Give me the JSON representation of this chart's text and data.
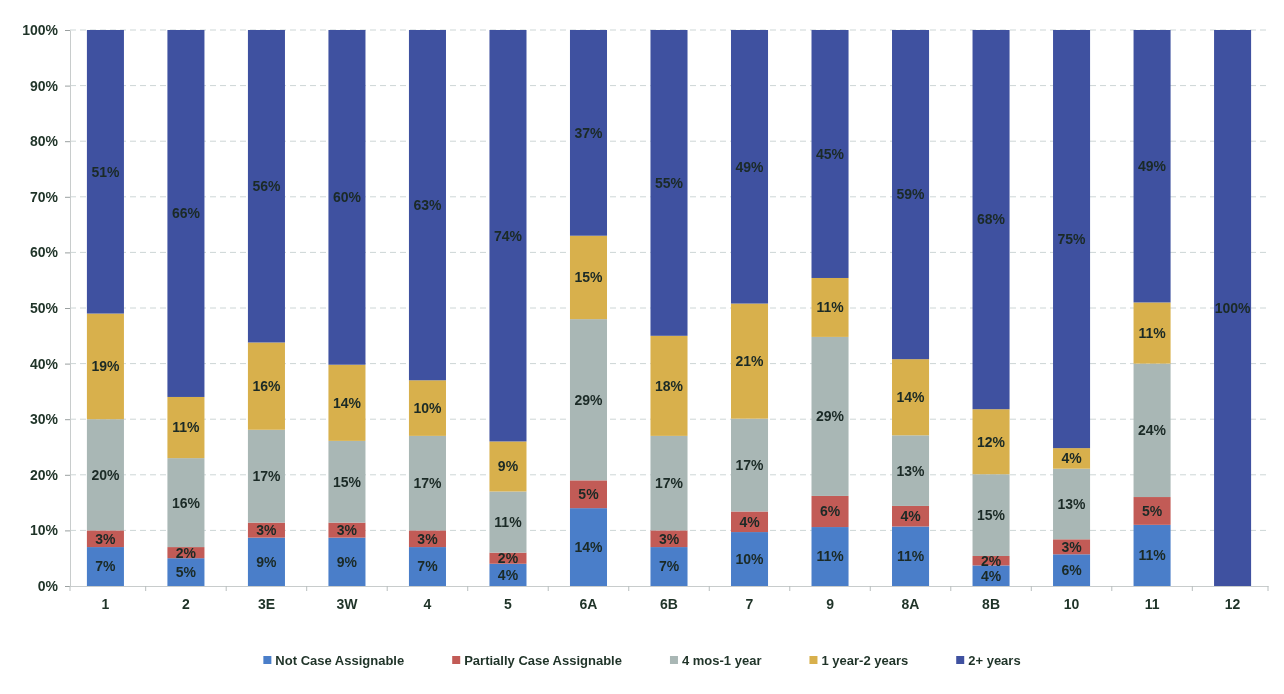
{
  "chart_data": {
    "type": "bar",
    "stacked": true,
    "categories": [
      "1",
      "2",
      "3E",
      "3W",
      "4",
      "5",
      "6A",
      "6B",
      "7",
      "9",
      "8A",
      "8B",
      "10",
      "11",
      "12"
    ],
    "series": [
      {
        "name": "Not Case Assignable",
        "color": "#4a7ec9",
        "values": [
          7,
          5,
          8.7,
          8.7,
          7,
          4,
          14,
          7,
          9.7,
          10.6,
          10.7,
          3.7,
          5.7,
          11,
          0
        ],
        "value_labels": [
          "7%",
          "5%",
          "9%",
          "9%",
          "7%",
          "4%",
          "14%",
          "7%",
          "10%",
          "11%",
          "11%",
          "4%",
          "6%",
          "11%",
          null
        ]
      },
      {
        "name": "Partially Case Assignable",
        "color": "#c25b56",
        "values": [
          3,
          2,
          2.7,
          2.7,
          3,
          2,
          5,
          3,
          3.7,
          5.6,
          3.7,
          1.7,
          2.7,
          5,
          0
        ],
        "value_labels": [
          "3%",
          "2%",
          "3%",
          "3%",
          "3%",
          "2%",
          "5%",
          "3%",
          "4%",
          "6%",
          "4%",
          "2%",
          "3%",
          "5%",
          null
        ]
      },
      {
        "name": "4 mos-1 year",
        "color": "#a9b7b5",
        "values": [
          20,
          16,
          16.7,
          14.7,
          17,
          11,
          29,
          17,
          16.7,
          28.6,
          12.7,
          14.7,
          12.7,
          24,
          0
        ],
        "value_labels": [
          "20%",
          "16%",
          "17%",
          "15%",
          "17%",
          "11%",
          "29%",
          "17%",
          "17%",
          "29%",
          "13%",
          "15%",
          "13%",
          "24%",
          null
        ]
      },
      {
        "name": "1 year-2 years",
        "color": "#d8b04c",
        "values": [
          19,
          11,
          15.7,
          13.7,
          10,
          9,
          15,
          18,
          20.7,
          10.6,
          13.7,
          11.7,
          3.7,
          11,
          0
        ],
        "value_labels": [
          "19%",
          "11%",
          "16%",
          "14%",
          "10%",
          "9%",
          "15%",
          "18%",
          "21%",
          "11%",
          "14%",
          "12%",
          "4%",
          "11%",
          null
        ]
      },
      {
        "name": "2+ years",
        "color": "#3f51a0",
        "values": [
          51,
          66,
          56.2,
          60.2,
          63,
          74,
          37,
          55,
          49.2,
          44.6,
          59.2,
          68.2,
          75.2,
          49,
          100
        ],
        "value_labels": [
          "51%",
          "66%",
          "56%",
          "60%",
          "63%",
          "74%",
          "37%",
          "55%",
          "49%",
          "45%",
          "59%",
          "68%",
          "75%",
          "49%",
          "100%"
        ]
      }
    ],
    "ylim": [
      0,
      100
    ],
    "yticks": [
      {
        "value": 0,
        "label": "0%"
      },
      {
        "value": 10,
        "label": "10%"
      },
      {
        "value": 20,
        "label": "20%"
      },
      {
        "value": 30,
        "label": "30%"
      },
      {
        "value": 40,
        "label": "40%"
      },
      {
        "value": 50,
        "label": "50%"
      },
      {
        "value": 60,
        "label": "60%"
      },
      {
        "value": 70,
        "label": "70%"
      },
      {
        "value": 80,
        "label": "80%"
      },
      {
        "value": 90,
        "label": "90%"
      },
      {
        "value": 100,
        "label": "100%"
      }
    ],
    "grid": "y",
    "legend": "bottom"
  }
}
